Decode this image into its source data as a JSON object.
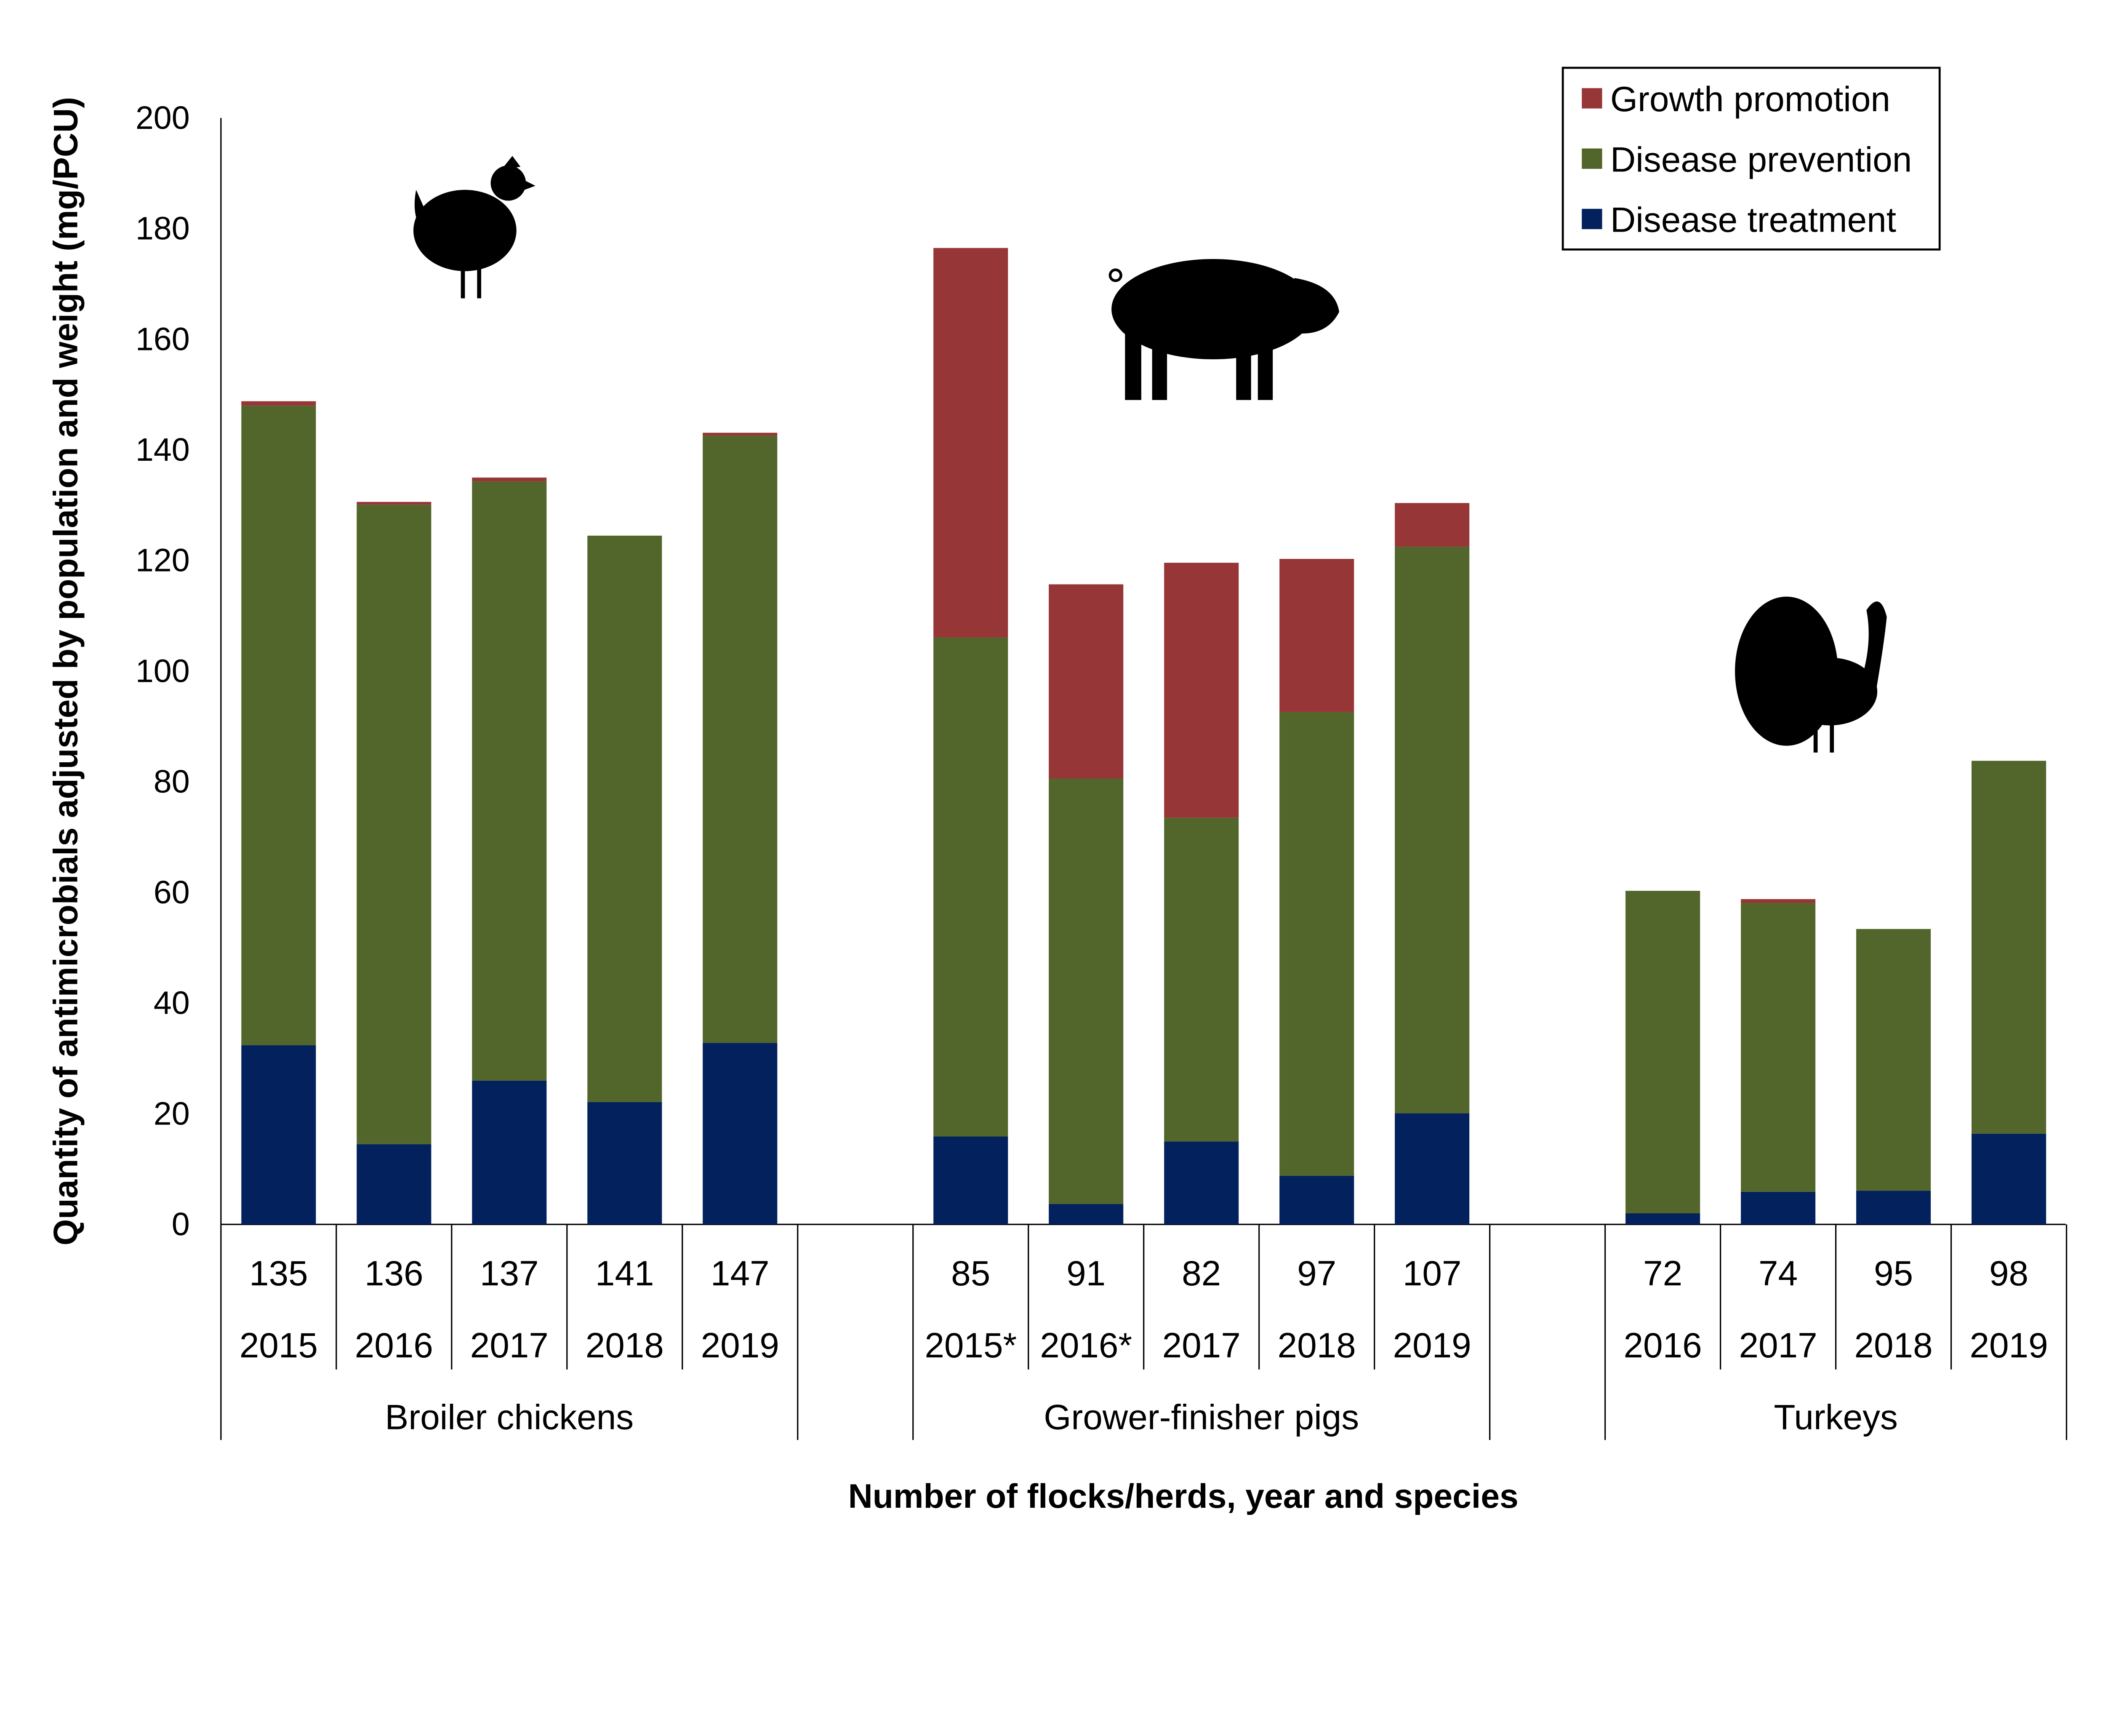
{
  "chart_data": {
    "type": "bar",
    "stacked": true,
    "title": "",
    "xlabel": "Number of flocks/herds, year and species",
    "ylabel": "Quantity of antimicrobials adjusted by population and weight (mg/PCU)",
    "ylim": [
      0,
      200
    ],
    "yticks": [
      0,
      20,
      40,
      60,
      80,
      100,
      120,
      140,
      160,
      180,
      200
    ],
    "grid": false,
    "legend_position": "top-right",
    "colors": {
      "Growth promotion": "#963637",
      "Disease prevention": "#52652a",
      "Disease treatment": "#03215c"
    },
    "groups": [
      {
        "name": "Broiler chickens",
        "icon": "chicken-icon",
        "categories": [
          {
            "n": "135",
            "year": "2015"
          },
          {
            "n": "136",
            "year": "2016"
          },
          {
            "n": "137",
            "year": "2017"
          },
          {
            "n": "141",
            "year": "2018"
          },
          {
            "n": "147",
            "year": "2019"
          }
        ]
      },
      {
        "name": "Grower-finisher pigs",
        "icon": "pig-icon",
        "categories": [
          {
            "n": "85",
            "year": "2015*"
          },
          {
            "n": "91",
            "year": "2016*"
          },
          {
            "n": "82",
            "year": "2017"
          },
          {
            "n": "97",
            "year": "2018"
          },
          {
            "n": "107",
            "year": "2019"
          }
        ]
      },
      {
        "name": "Turkeys",
        "icon": "turkey-icon",
        "categories": [
          {
            "n": "72",
            "year": "2016"
          },
          {
            "n": "74",
            "year": "2017"
          },
          {
            "n": "95",
            "year": "2018"
          },
          {
            "n": "98",
            "year": "2019"
          }
        ]
      }
    ],
    "series": [
      {
        "name": "Disease treatment",
        "values": [
          32.4,
          14.5,
          26.0,
          22.1,
          32.8,
          15.9,
          3.7,
          15.0,
          8.8,
          20.1,
          2.0,
          5.9,
          6.1,
          16.4
        ]
      },
      {
        "name": "Disease prevention",
        "values": [
          115.6,
          115.6,
          108.3,
          102.4,
          109.8,
          90.2,
          76.9,
          58.5,
          83.8,
          102.4,
          58.3,
          52.2,
          47.3,
          67.4
        ]
      },
      {
        "name": "Growth promotion",
        "values": [
          0.8,
          0.5,
          0.7,
          0.0,
          0.5,
          70.4,
          35.1,
          46.1,
          27.7,
          7.9,
          0.0,
          0.7,
          0.0,
          0.0
        ]
      }
    ],
    "legend_order": [
      "Growth promotion",
      "Disease prevention",
      "Disease treatment"
    ]
  }
}
